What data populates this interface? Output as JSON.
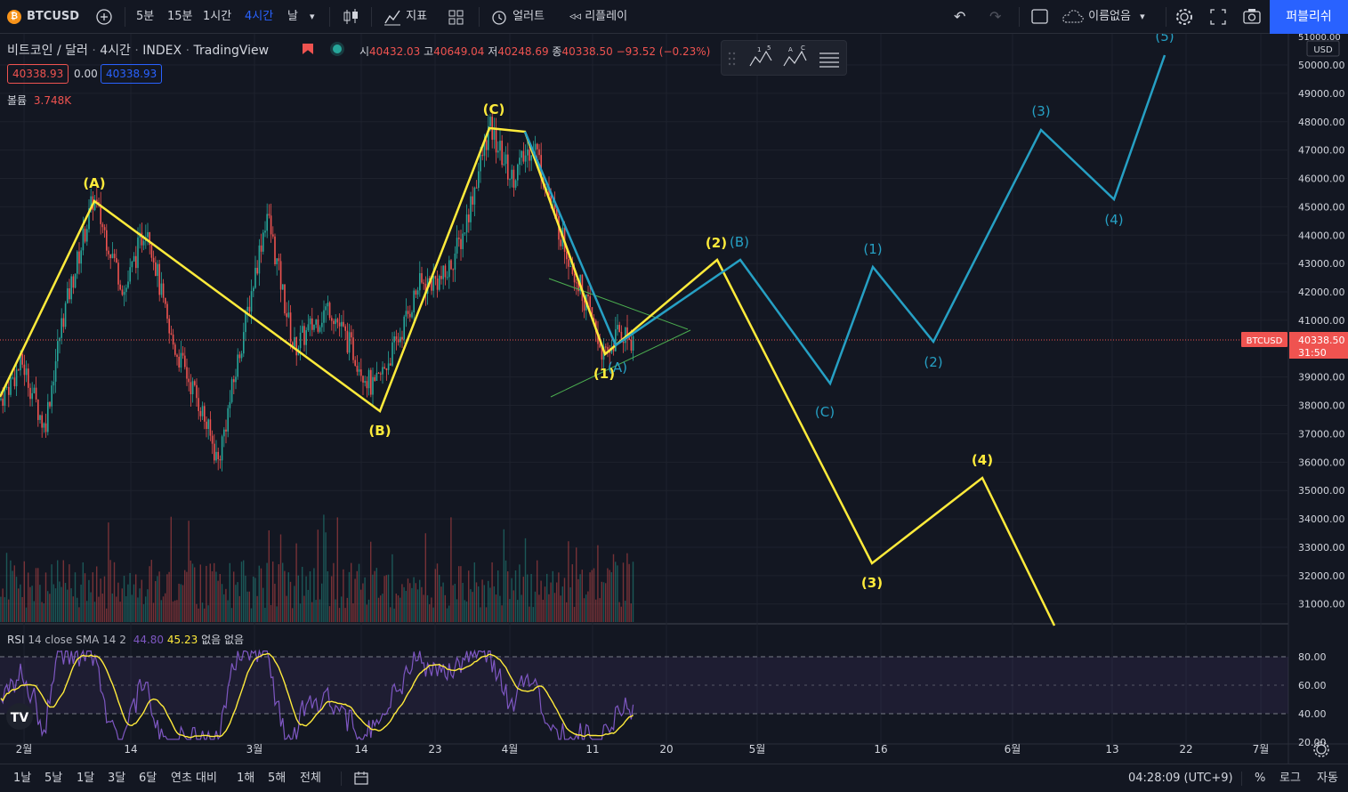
{
  "toolbar": {
    "symbol": "BTCUSD",
    "symbol_icon": "bitcoin-icon",
    "intervals": [
      "5분",
      "15분",
      "1시간",
      "4시간",
      "날"
    ],
    "active_interval": "4시간",
    "indicators_label": "지표",
    "alert_label": "얼러트",
    "replay_label": "리플레이",
    "layout_name": "이름없음",
    "publish_label": "퍼블리쉬"
  },
  "legend": {
    "title": "비트코인 / 달러",
    "interval": "4시간",
    "exchange": "INDEX",
    "source": "TradingView",
    "open_label": "시",
    "open": "40432.03",
    "high_label": "고",
    "high": "40649.04",
    "low_label": "저",
    "low": "40248.69",
    "close_label": "종",
    "close": "40338.50",
    "change": "−93.52 (−0.23%)",
    "bid": "40338.93",
    "spread": "0.00",
    "ask": "40338.93",
    "volume_label": "볼륨",
    "volume": "3.748K"
  },
  "rsi_legend": {
    "name": "RSI",
    "params": "14 close SMA 14 2",
    "rsi_value": "44.80",
    "sma_value": "45.23",
    "extra1": "없음",
    "extra2": "없음"
  },
  "price_axis": {
    "currency": "USD",
    "current_symbol": "BTCUSD",
    "current_price": "40338.50",
    "countdown": "31:50",
    "labels": [
      "51000.00",
      "50000.00",
      "49000.00",
      "48000.00",
      "47000.00",
      "46000.00",
      "45000.00",
      "44000.00",
      "43000.00",
      "42000.00",
      "41000.00",
      "39000.00",
      "38000.00",
      "37000.00",
      "36000.00",
      "35000.00",
      "34000.00",
      "33000.00",
      "32000.00",
      "31000.00"
    ],
    "rsi_labels": [
      "80.00",
      "60.00",
      "40.00",
      "20.00"
    ]
  },
  "time_axis": {
    "labels": [
      "2월",
      "14",
      "3월",
      "14",
      "23",
      "4월",
      "11",
      "20",
      "5월",
      "16",
      "6월",
      "13",
      "22",
      "7월"
    ]
  },
  "bottom": {
    "ranges": [
      "1날",
      "5날",
      "1달",
      "3달",
      "6달",
      "연초 대비",
      "1해",
      "5해",
      "전체"
    ],
    "clock": "04:28:09 (UTC+9)",
    "percent": "%",
    "log": "로그",
    "auto": "자동"
  },
  "wave_labels": {
    "yellow": [
      "(A)",
      "(B)",
      "(C)",
      "(1)",
      "(2)",
      "(3)",
      "(4)"
    ],
    "blue": [
      "(A)",
      "(B)",
      "(C)",
      "(1)",
      "(2)",
      "(3)",
      "(4)",
      "(5)"
    ]
  },
  "colors": {
    "background": "#131722",
    "up": "#26a69a",
    "down": "#ef5350",
    "yellow_wave": "#ffeb3b",
    "blue_wave": "#26a0c4",
    "accent": "#2962ff",
    "rsi": "#7e57c2"
  }
}
